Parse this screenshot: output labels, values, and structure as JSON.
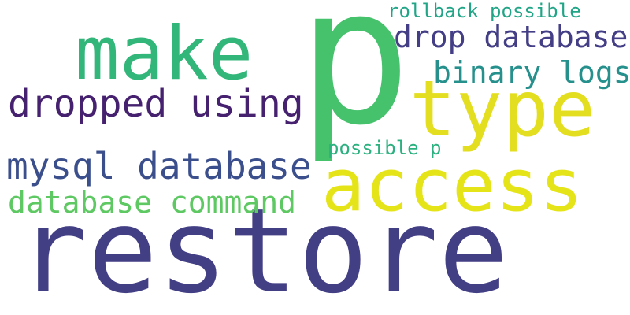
{
  "words": [
    {
      "id": "restore",
      "text": "restore",
      "color": "#433f85"
    },
    {
      "id": "p",
      "text": "p",
      "color": "#46c16c"
    },
    {
      "id": "make",
      "text": "make",
      "color": "#33b679"
    },
    {
      "id": "type",
      "text": "type",
      "color": "#e3df20"
    },
    {
      "id": "access",
      "text": "access",
      "color": "#e5e419"
    },
    {
      "id": "dropped_using",
      "text": "dropped using",
      "color": "#45216f"
    },
    {
      "id": "mysql_database",
      "text": "mysql database",
      "color": "#3b4f8c"
    },
    {
      "id": "database_command",
      "text": "database command",
      "color": "#5ec962"
    },
    {
      "id": "drop_database",
      "text": "drop database",
      "color": "#433e85"
    },
    {
      "id": "binary_logs",
      "text": "binary logs",
      "color": "#26908d"
    },
    {
      "id": "rollback_possible",
      "text": "rollback possible",
      "color": "#21a586"
    },
    {
      "id": "possible_p",
      "text": "possible p",
      "color": "#2bb07f"
    }
  ]
}
